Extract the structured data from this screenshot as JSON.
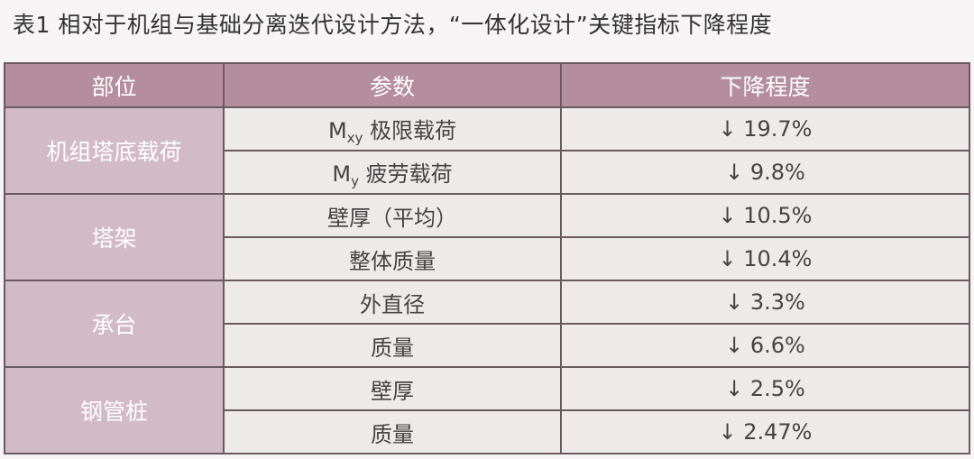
{
  "title": "表1 相对于机组与基础分离迭代设计方法，“一体化设计”关键指标下降程度",
  "headers": [
    "部位",
    "参数",
    "下降程度"
  ],
  "groups": [
    {
      "part": "机组塔底载荷",
      "rows": [
        {
          "param": "M",
          "sub": "xy",
          "param_rest": " 极限载荷",
          "value": "↓ 19.7%"
        },
        {
          "param": "M",
          "sub": "y",
          "param_rest": " 疲劳载荷",
          "value": "↓ 9.8%"
        }
      ]
    },
    {
      "part": "塔架",
      "rows": [
        {
          "param": "壁厚（平均）",
          "value": "↓ 10.5%"
        },
        {
          "param": "整体质量",
          "value": "↓ 10.4%"
        }
      ]
    },
    {
      "part": "承台",
      "rows": [
        {
          "param": "外直径",
          "value": "↓ 3.3%"
        },
        {
          "param": "质量",
          "value": "↓ 6.6%"
        }
      ]
    },
    {
      "part": "钢管桩",
      "rows": [
        {
          "param": "壁厚",
          "value": "↓ 2.5%"
        },
        {
          "param": "质量",
          "value": "↓ 2.47%"
        }
      ]
    }
  ],
  "colors": {
    "header": "#b58e9d",
    "part_column": "#d2bac6",
    "cells": "#efeaea"
  }
}
